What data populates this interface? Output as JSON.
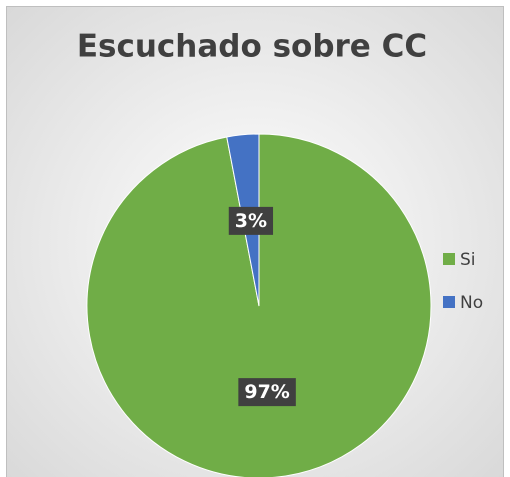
{
  "chart_data": {
    "type": "pie",
    "title": "Escuchado sobre CC",
    "categories": [
      "Si",
      "No"
    ],
    "values": [
      97,
      3
    ],
    "value_labels": [
      "97%",
      "3%"
    ],
    "colors": [
      "#70ad47",
      "#4472c4"
    ],
    "legend": "right"
  }
}
